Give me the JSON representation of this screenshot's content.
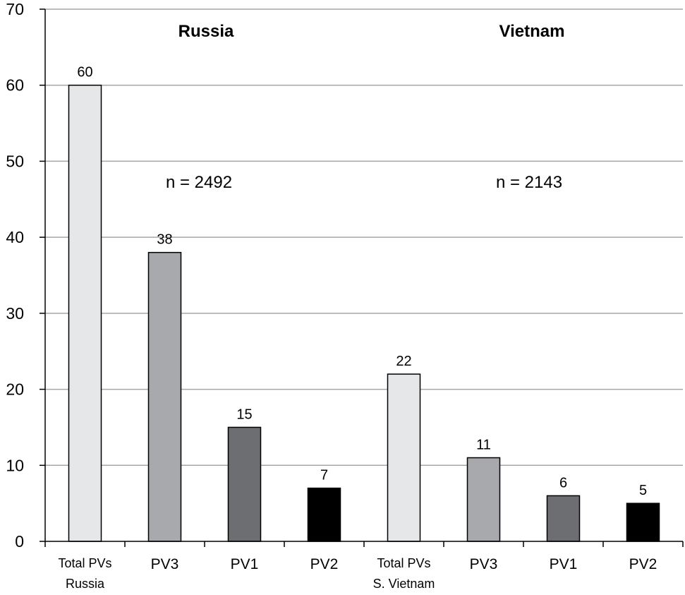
{
  "chart_data": {
    "type": "bar",
    "title": "",
    "xlabel": "",
    "ylabel": "",
    "ylim": [
      0,
      70
    ],
    "yticks": [
      0,
      10,
      20,
      30,
      40,
      50,
      60,
      70
    ],
    "grid": true,
    "categories": [
      {
        "line1": "Total PVs",
        "line2": "Russia"
      },
      {
        "line1": "PV3",
        "line2": ""
      },
      {
        "line1": "PV1",
        "line2": ""
      },
      {
        "line1": "PV2",
        "line2": ""
      },
      {
        "line1": "Total PVs",
        "line2": "S. Vietnam"
      },
      {
        "line1": "PV3",
        "line2": ""
      },
      {
        "line1": "PV1",
        "line2": ""
      },
      {
        "line1": "PV2",
        "line2": ""
      }
    ],
    "values": [
      60,
      38,
      15,
      7,
      22,
      11,
      6,
      5
    ],
    "bar_colors": [
      "#e6e7e9",
      "#a7a9ac",
      "#6d6e71",
      "#000000",
      "#e6e7e9",
      "#a7a9ac",
      "#6d6e71",
      "#000000"
    ],
    "groups": [
      {
        "title": "Russia",
        "annotation": "n = 2492"
      },
      {
        "title": "Vietnam",
        "annotation": "n = 2143"
      }
    ]
  }
}
